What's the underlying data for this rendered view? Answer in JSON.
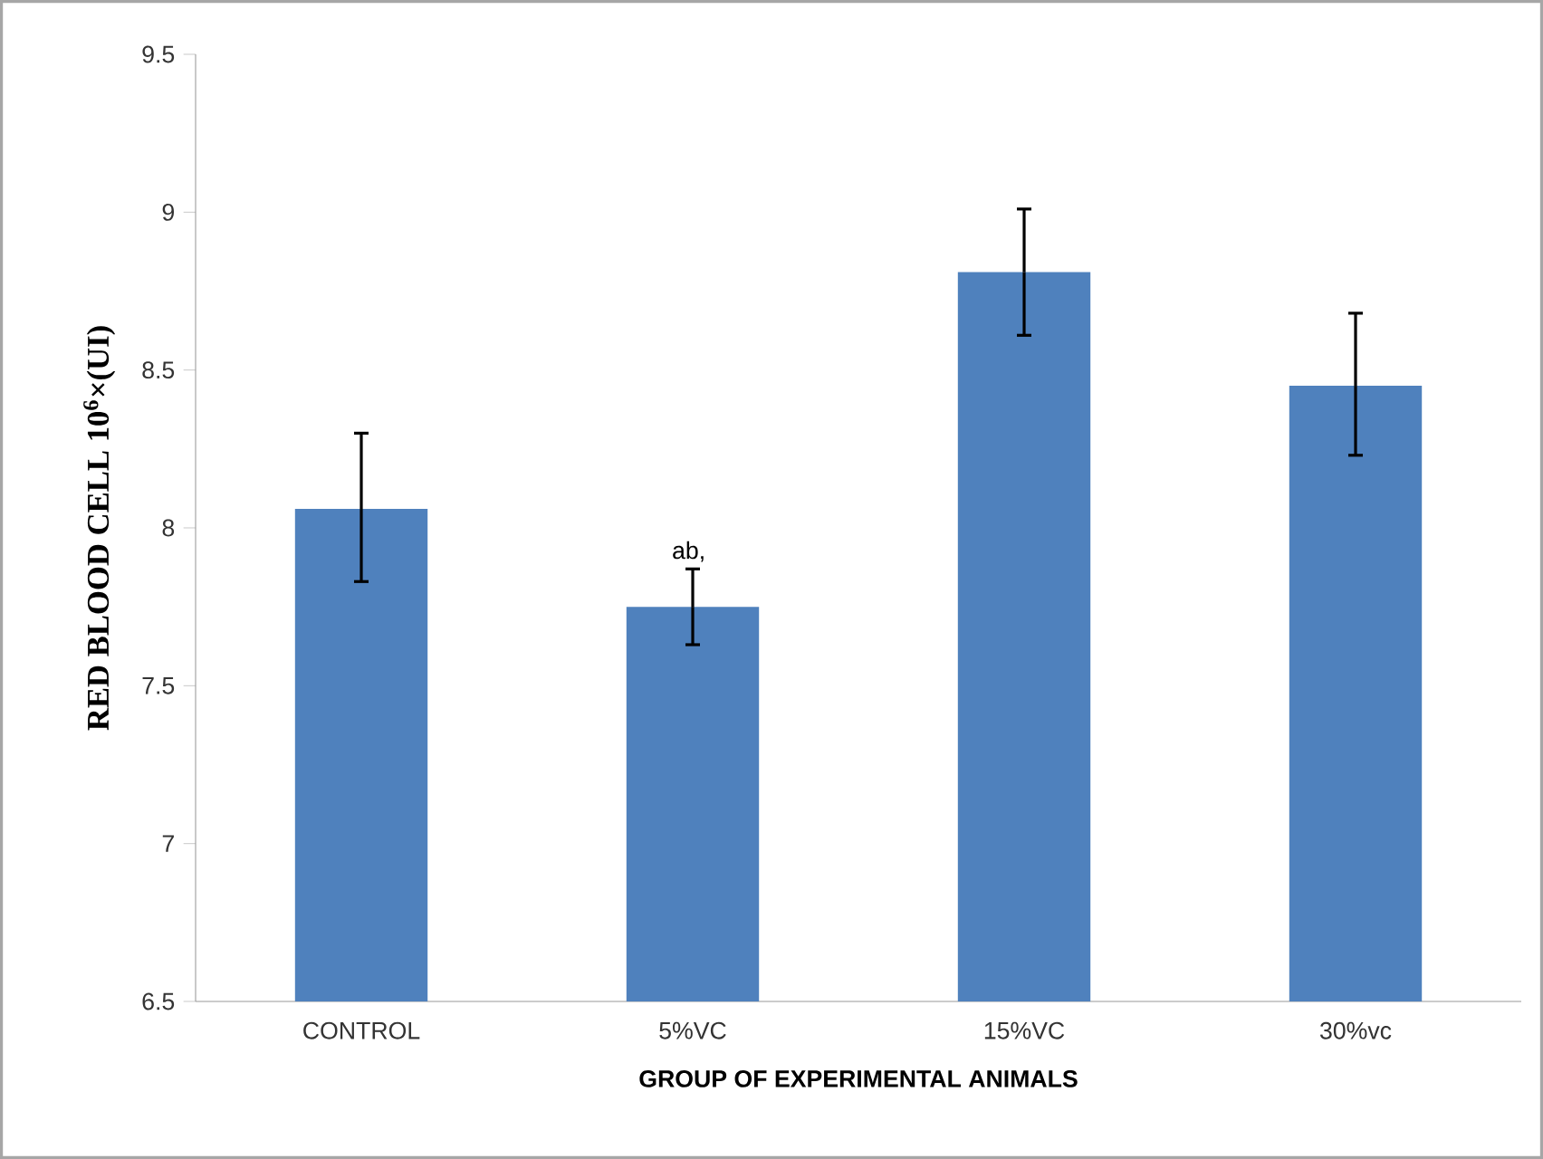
{
  "chart_data": {
    "type": "bar",
    "xlabel": "GROUP OF EXPERIMENTAL ANIMALS",
    "ylabel": "RED BLOOD CELL 10$^{6}$×(UI)",
    "categories": [
      "CONTROL",
      "5%VC",
      "15%VC",
      "30%vc"
    ],
    "values": [
      8.06,
      7.75,
      8.81,
      8.45
    ],
    "errors": [
      [
        7.83,
        8.3
      ],
      [
        7.63,
        7.87
      ],
      [
        8.61,
        9.01
      ],
      [
        8.23,
        8.68
      ]
    ],
    "color": "#4f81bd",
    "ylim": [
      6.5,
      9.5
    ],
    "yticks": [
      6.5,
      7,
      7.5,
      8,
      8.5,
      9,
      9.5
    ],
    "annotations": [
      "ab,"
    ]
  }
}
